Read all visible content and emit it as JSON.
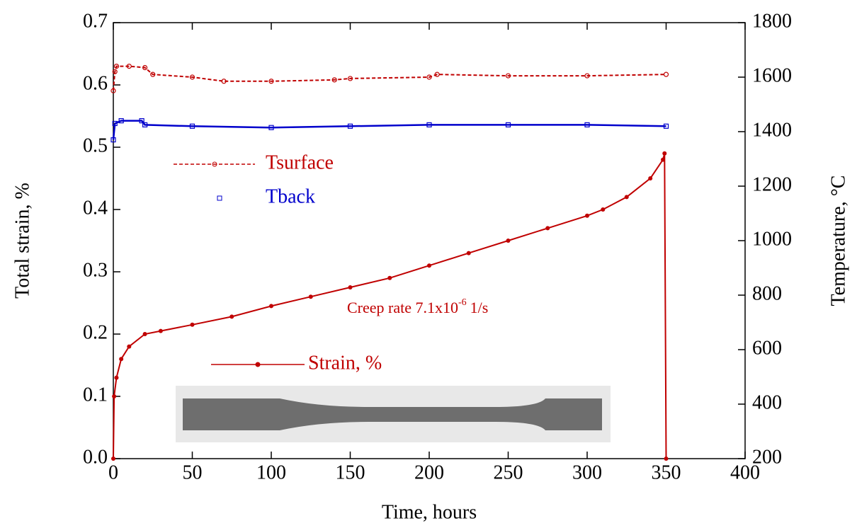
{
  "chart_data": {
    "type": "line",
    "xlabel": "Time, hours",
    "ylabel": "Total strain, %",
    "y2label": "Temperature, °C",
    "annotation": {
      "text": "Creep rate 7.1x10",
      "superscript": "-6",
      "suffix": "1/s"
    },
    "xlim": [
      0,
      400
    ],
    "xticks": [
      0,
      50,
      100,
      150,
      200,
      250,
      300,
      350,
      400
    ],
    "ylim": [
      0,
      0.7
    ],
    "yticks": [
      {
        "value": 0,
        "label": "0.0"
      },
      0.1,
      0.2,
      0.3,
      0.4,
      0.5,
      0.6,
      0.7
    ],
    "y2lim": [
      200,
      1800
    ],
    "y2ticks": [
      200,
      400,
      600,
      800,
      1000,
      1200,
      1400,
      1600,
      1800
    ],
    "series": [
      {
        "name": "Tsurface",
        "color": "#c00000",
        "axis": "y2",
        "style": "dashed-circle",
        "x": [
          0,
          1,
          2,
          10,
          20,
          25,
          50,
          70,
          100,
          140,
          150,
          200,
          205,
          250,
          300,
          350
        ],
        "values": [
          1550,
          1620,
          1640,
          1640,
          1635,
          1610,
          1600,
          1585,
          1585,
          1590,
          1595,
          1600,
          1610,
          1605,
          1605,
          1610
        ]
      },
      {
        "name": "Tback",
        "color": "#0000cc",
        "axis": "y2",
        "style": "square",
        "x": [
          0,
          1,
          5,
          18,
          20,
          50,
          100,
          150,
          200,
          250,
          300,
          350
        ],
        "values": [
          1370,
          1430,
          1440,
          1440,
          1425,
          1420,
          1415,
          1420,
          1425,
          1425,
          1425,
          1420
        ]
      },
      {
        "name": "Strain, %",
        "color": "#c00000",
        "style": "solid-dot",
        "x": [
          0,
          0.5,
          2,
          5,
          10,
          20,
          30,
          50,
          75,
          100,
          125,
          150,
          175,
          200,
          225,
          250,
          275,
          300,
          310,
          325,
          340,
          348,
          349,
          350
        ],
        "values": [
          0,
          0.1,
          0.13,
          0.16,
          0.18,
          0.2,
          0.205,
          0.215,
          0.228,
          0.245,
          0.26,
          0.275,
          0.29,
          0.31,
          0.33,
          0.35,
          0.37,
          0.39,
          0.4,
          0.42,
          0.45,
          0.48,
          0.49,
          0
        ]
      }
    ]
  }
}
